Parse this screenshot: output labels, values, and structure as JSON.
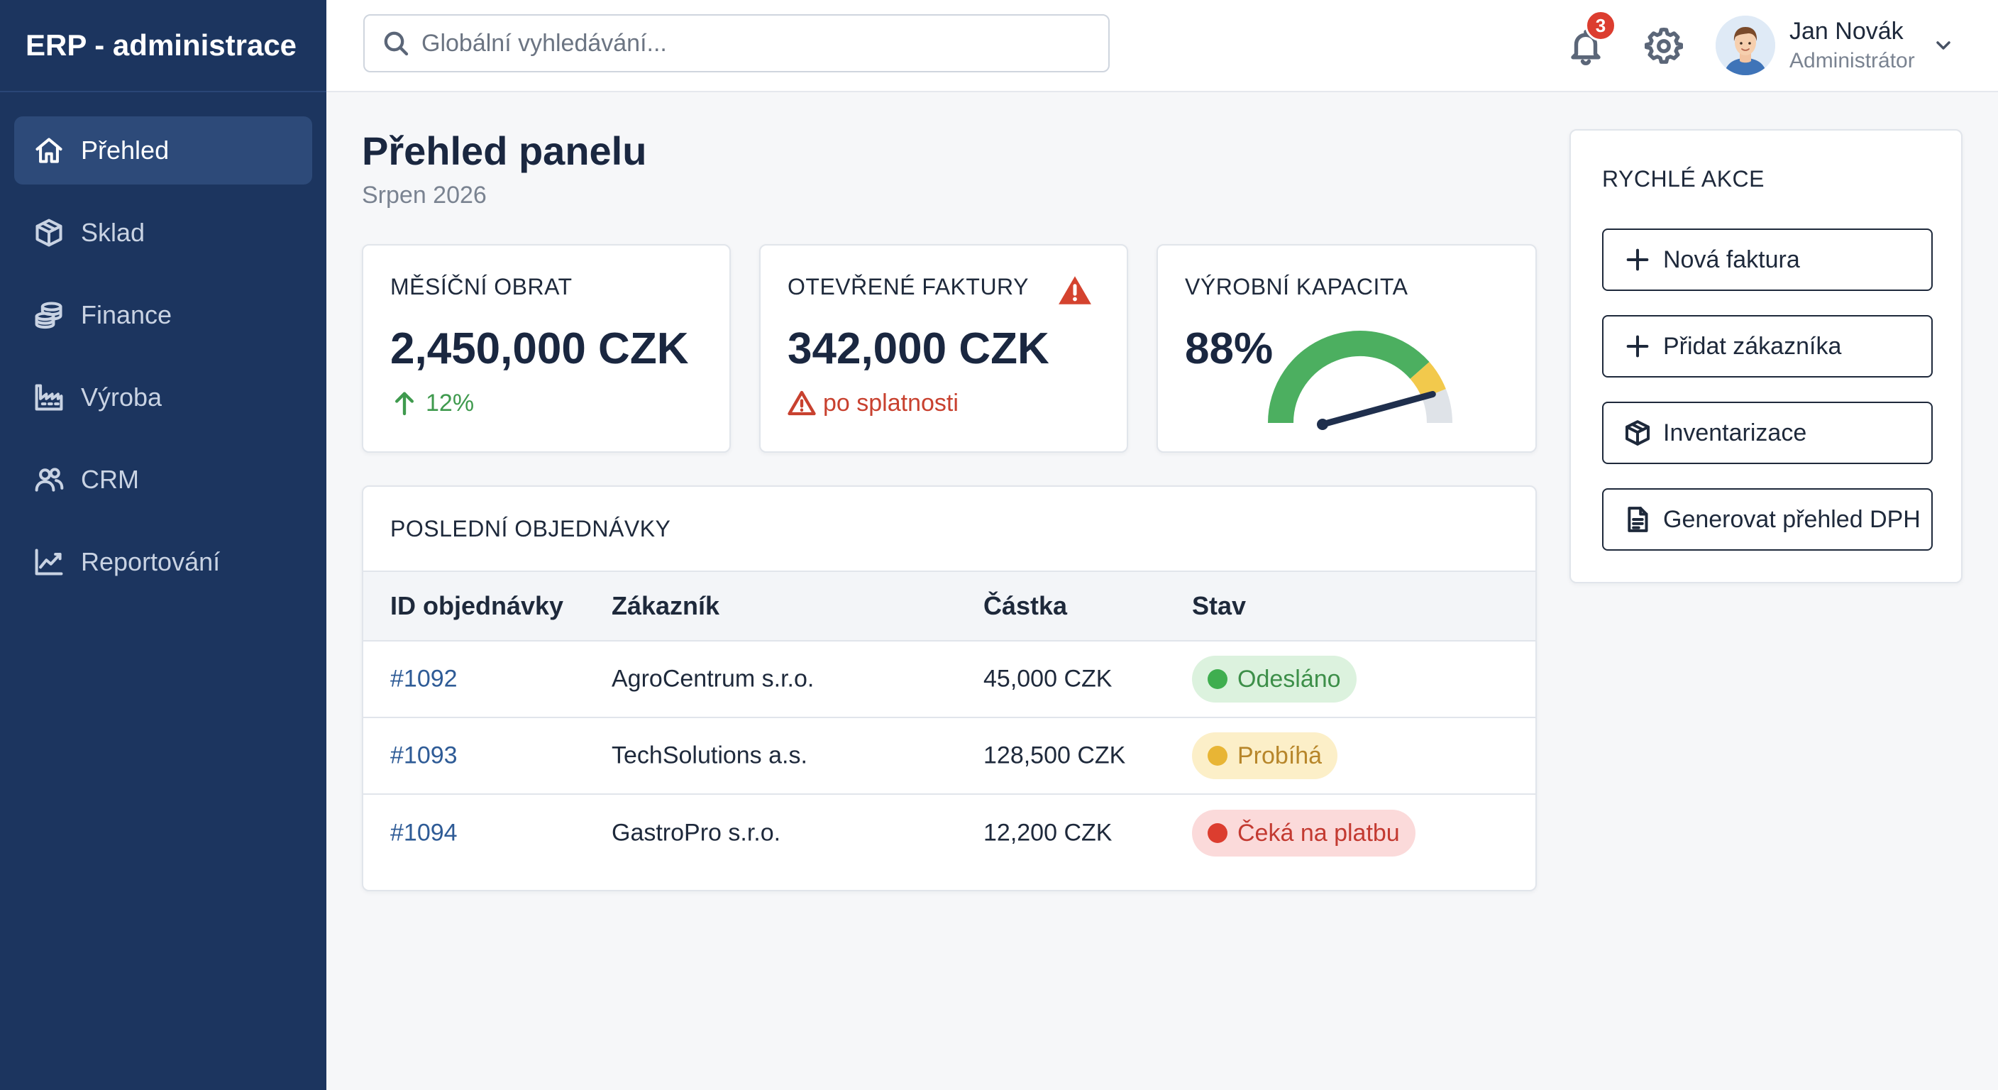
{
  "app": {
    "title": "ERP - administrace"
  },
  "sidebar": {
    "items": [
      {
        "label": "Přehled",
        "icon": "home-icon",
        "active": true
      },
      {
        "label": "Sklad",
        "icon": "box-icon",
        "active": false
      },
      {
        "label": "Finance",
        "icon": "coins-icon",
        "active": false
      },
      {
        "label": "Výroba",
        "icon": "factory-icon",
        "active": false
      },
      {
        "label": "CRM",
        "icon": "users-icon",
        "active": false
      },
      {
        "label": "Reportování",
        "icon": "chart-line-icon",
        "active": false
      }
    ]
  },
  "topbar": {
    "search": {
      "placeholder": "Globální vyhledávání...",
      "value": ""
    },
    "notifications": {
      "count": "3"
    },
    "user": {
      "name": "Jan Novák",
      "role": "Administrátor"
    }
  },
  "header": {
    "title": "Přehled panelu",
    "subtitle": "Srpen 2026"
  },
  "kpis": {
    "revenue": {
      "label": "MĚSÍČNÍ OBRAT",
      "value": "2,450,000 CZK",
      "trend": "12%",
      "trend_color": "#3f9a4e"
    },
    "invoices": {
      "label": "OTEVŘENÉ FAKTURY",
      "value": "342,000 CZK",
      "note": "po splatnosti",
      "alert_color": "#c8412f"
    },
    "capacity": {
      "label": "VÝROBNÍ KAPACITA",
      "value": "88%",
      "level": 0.88,
      "gauge_colors": [
        "#4caf60",
        "#f2c94c",
        "#dfe3e8"
      ]
    }
  },
  "orders": {
    "title": "POSLEDNÍ OBJEDNÁVKY",
    "columns": [
      "ID objednávky",
      "Zákazník",
      "Částka",
      "Stav"
    ],
    "rows": [
      {
        "id": "#1092",
        "customer": "AgroCentrum s.r.o.",
        "amount": "45,000 CZK",
        "status": "Odesláno",
        "status_bg": "#dcf2de",
        "status_fg": "#3d8f49",
        "status_dot": "#3fae4f"
      },
      {
        "id": "#1093",
        "customer": "TechSolutions a.s.",
        "amount": "128,500 CZK",
        "status": "Probíhá",
        "status_bg": "#fcefc8",
        "status_fg": "#b7862a",
        "status_dot": "#e8b535"
      },
      {
        "id": "#1094",
        "customer": "GastroPro s.r.o.",
        "amount": "12,200 CZK",
        "status": "Čeká na platbu",
        "status_bg": "#fbdada",
        "status_fg": "#c33a31",
        "status_dot": "#dc3d2f"
      }
    ]
  },
  "quick_actions": {
    "title": "RYCHLÉ AKCE",
    "buttons": [
      {
        "label": "Nová faktura",
        "icon": "plus-icon"
      },
      {
        "label": "Přidat zákazníka",
        "icon": "plus-icon"
      },
      {
        "label": "Inventarizace",
        "icon": "box-icon"
      },
      {
        "label": "Generovat přehled DPH",
        "icon": "document-icon"
      }
    ]
  }
}
